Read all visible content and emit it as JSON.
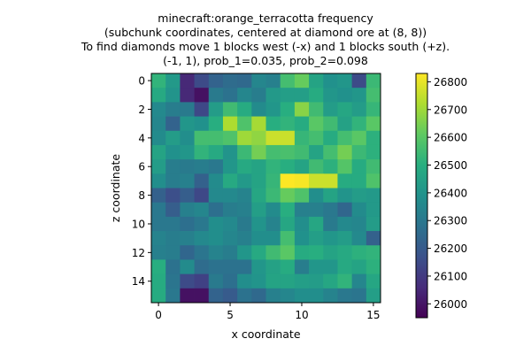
{
  "chart_data": {
    "type": "heatmap",
    "title_lines": [
      "minecraft:orange_terracotta frequency",
      "(subchunk coordinates, centered at diamond ore at (8, 8))",
      "To find diamonds move 1 blocks west (-x) and 1 blocks south (+z).",
      "(-1, 1), prob_1=0.035, prob_2=0.098"
    ],
    "xlabel": "x coordinate",
    "ylabel": "z coordinate",
    "x_ticks": [
      0,
      5,
      10,
      15
    ],
    "y_ticks": [
      0,
      2,
      4,
      6,
      8,
      10,
      12,
      14
    ],
    "colorbar_ticks": [
      26000,
      26100,
      26200,
      26300,
      26400,
      26500,
      26600,
      26700,
      26800
    ],
    "vmin": 25950,
    "vmax": 26830,
    "colormap": "viridis",
    "values": [
      [
        26520,
        26420,
        26050,
        26150,
        26230,
        26260,
        26250,
        26350,
        26330,
        26560,
        26620,
        26460,
        26390,
        26410,
        26150,
        26540
      ],
      [
        26480,
        26400,
        26050,
        25990,
        26310,
        26280,
        26350,
        26320,
        26420,
        26440,
        26440,
        26490,
        26410,
        26390,
        26410,
        26560
      ],
      [
        26360,
        26320,
        26310,
        26140,
        26430,
        26550,
        26490,
        26370,
        26410,
        26500,
        26670,
        26550,
        26430,
        26470,
        26430,
        26530
      ],
      [
        26350,
        26230,
        26410,
        26390,
        26500,
        26720,
        26580,
        26710,
        26500,
        26520,
        26490,
        26600,
        26550,
        26450,
        26520,
        26600
      ],
      [
        26370,
        26430,
        26380,
        26560,
        26560,
        26580,
        26700,
        26680,
        26760,
        26760,
        26530,
        26560,
        26490,
        26560,
        26600,
        26510
      ],
      [
        26460,
        26390,
        26410,
        26520,
        26480,
        26400,
        26540,
        26640,
        26560,
        26570,
        26550,
        26460,
        26560,
        26640,
        26540,
        26510
      ],
      [
        26430,
        26320,
        26310,
        26320,
        26300,
        26410,
        26480,
        26460,
        26520,
        26500,
        26460,
        26550,
        26510,
        26590,
        26490,
        26550
      ],
      [
        26380,
        26320,
        26330,
        26220,
        26370,
        26480,
        26420,
        26460,
        26530,
        26830,
        26820,
        26760,
        26760,
        26490,
        26490,
        26580
      ],
      [
        26220,
        26160,
        26210,
        26140,
        26360,
        26360,
        26340,
        26470,
        26540,
        26620,
        26580,
        26380,
        26460,
        26400,
        26430,
        26420
      ],
      [
        26300,
        26210,
        26330,
        26350,
        26270,
        26320,
        26330,
        26440,
        26370,
        26500,
        26330,
        26330,
        26300,
        26240,
        26370,
        26420
      ],
      [
        26300,
        26300,
        26270,
        26300,
        26380,
        26360,
        26310,
        26400,
        26340,
        26470,
        26380,
        26470,
        26310,
        26360,
        26350,
        26430
      ],
      [
        26340,
        26320,
        26330,
        26360,
        26380,
        26350,
        26330,
        26380,
        26380,
        26560,
        26390,
        26440,
        26410,
        26430,
        26360,
        26220
      ],
      [
        26330,
        26320,
        26240,
        26290,
        26340,
        26320,
        26410,
        26480,
        26550,
        26600,
        26490,
        26500,
        26460,
        26480,
        26510,
        26520
      ],
      [
        26500,
        26280,
        26370,
        26260,
        26280,
        26280,
        26280,
        26410,
        26450,
        26490,
        26320,
        26410,
        26410,
        26480,
        26460,
        26510
      ],
      [
        26490,
        26290,
        26150,
        26120,
        26310,
        26270,
        26380,
        26400,
        26460,
        26460,
        26440,
        26430,
        26470,
        26520,
        26350,
        26470
      ],
      [
        26490,
        26300,
        25990,
        25990,
        26230,
        26200,
        26280,
        26250,
        26330,
        26350,
        26380,
        26380,
        26340,
        26300,
        26290,
        26440
      ]
    ]
  }
}
